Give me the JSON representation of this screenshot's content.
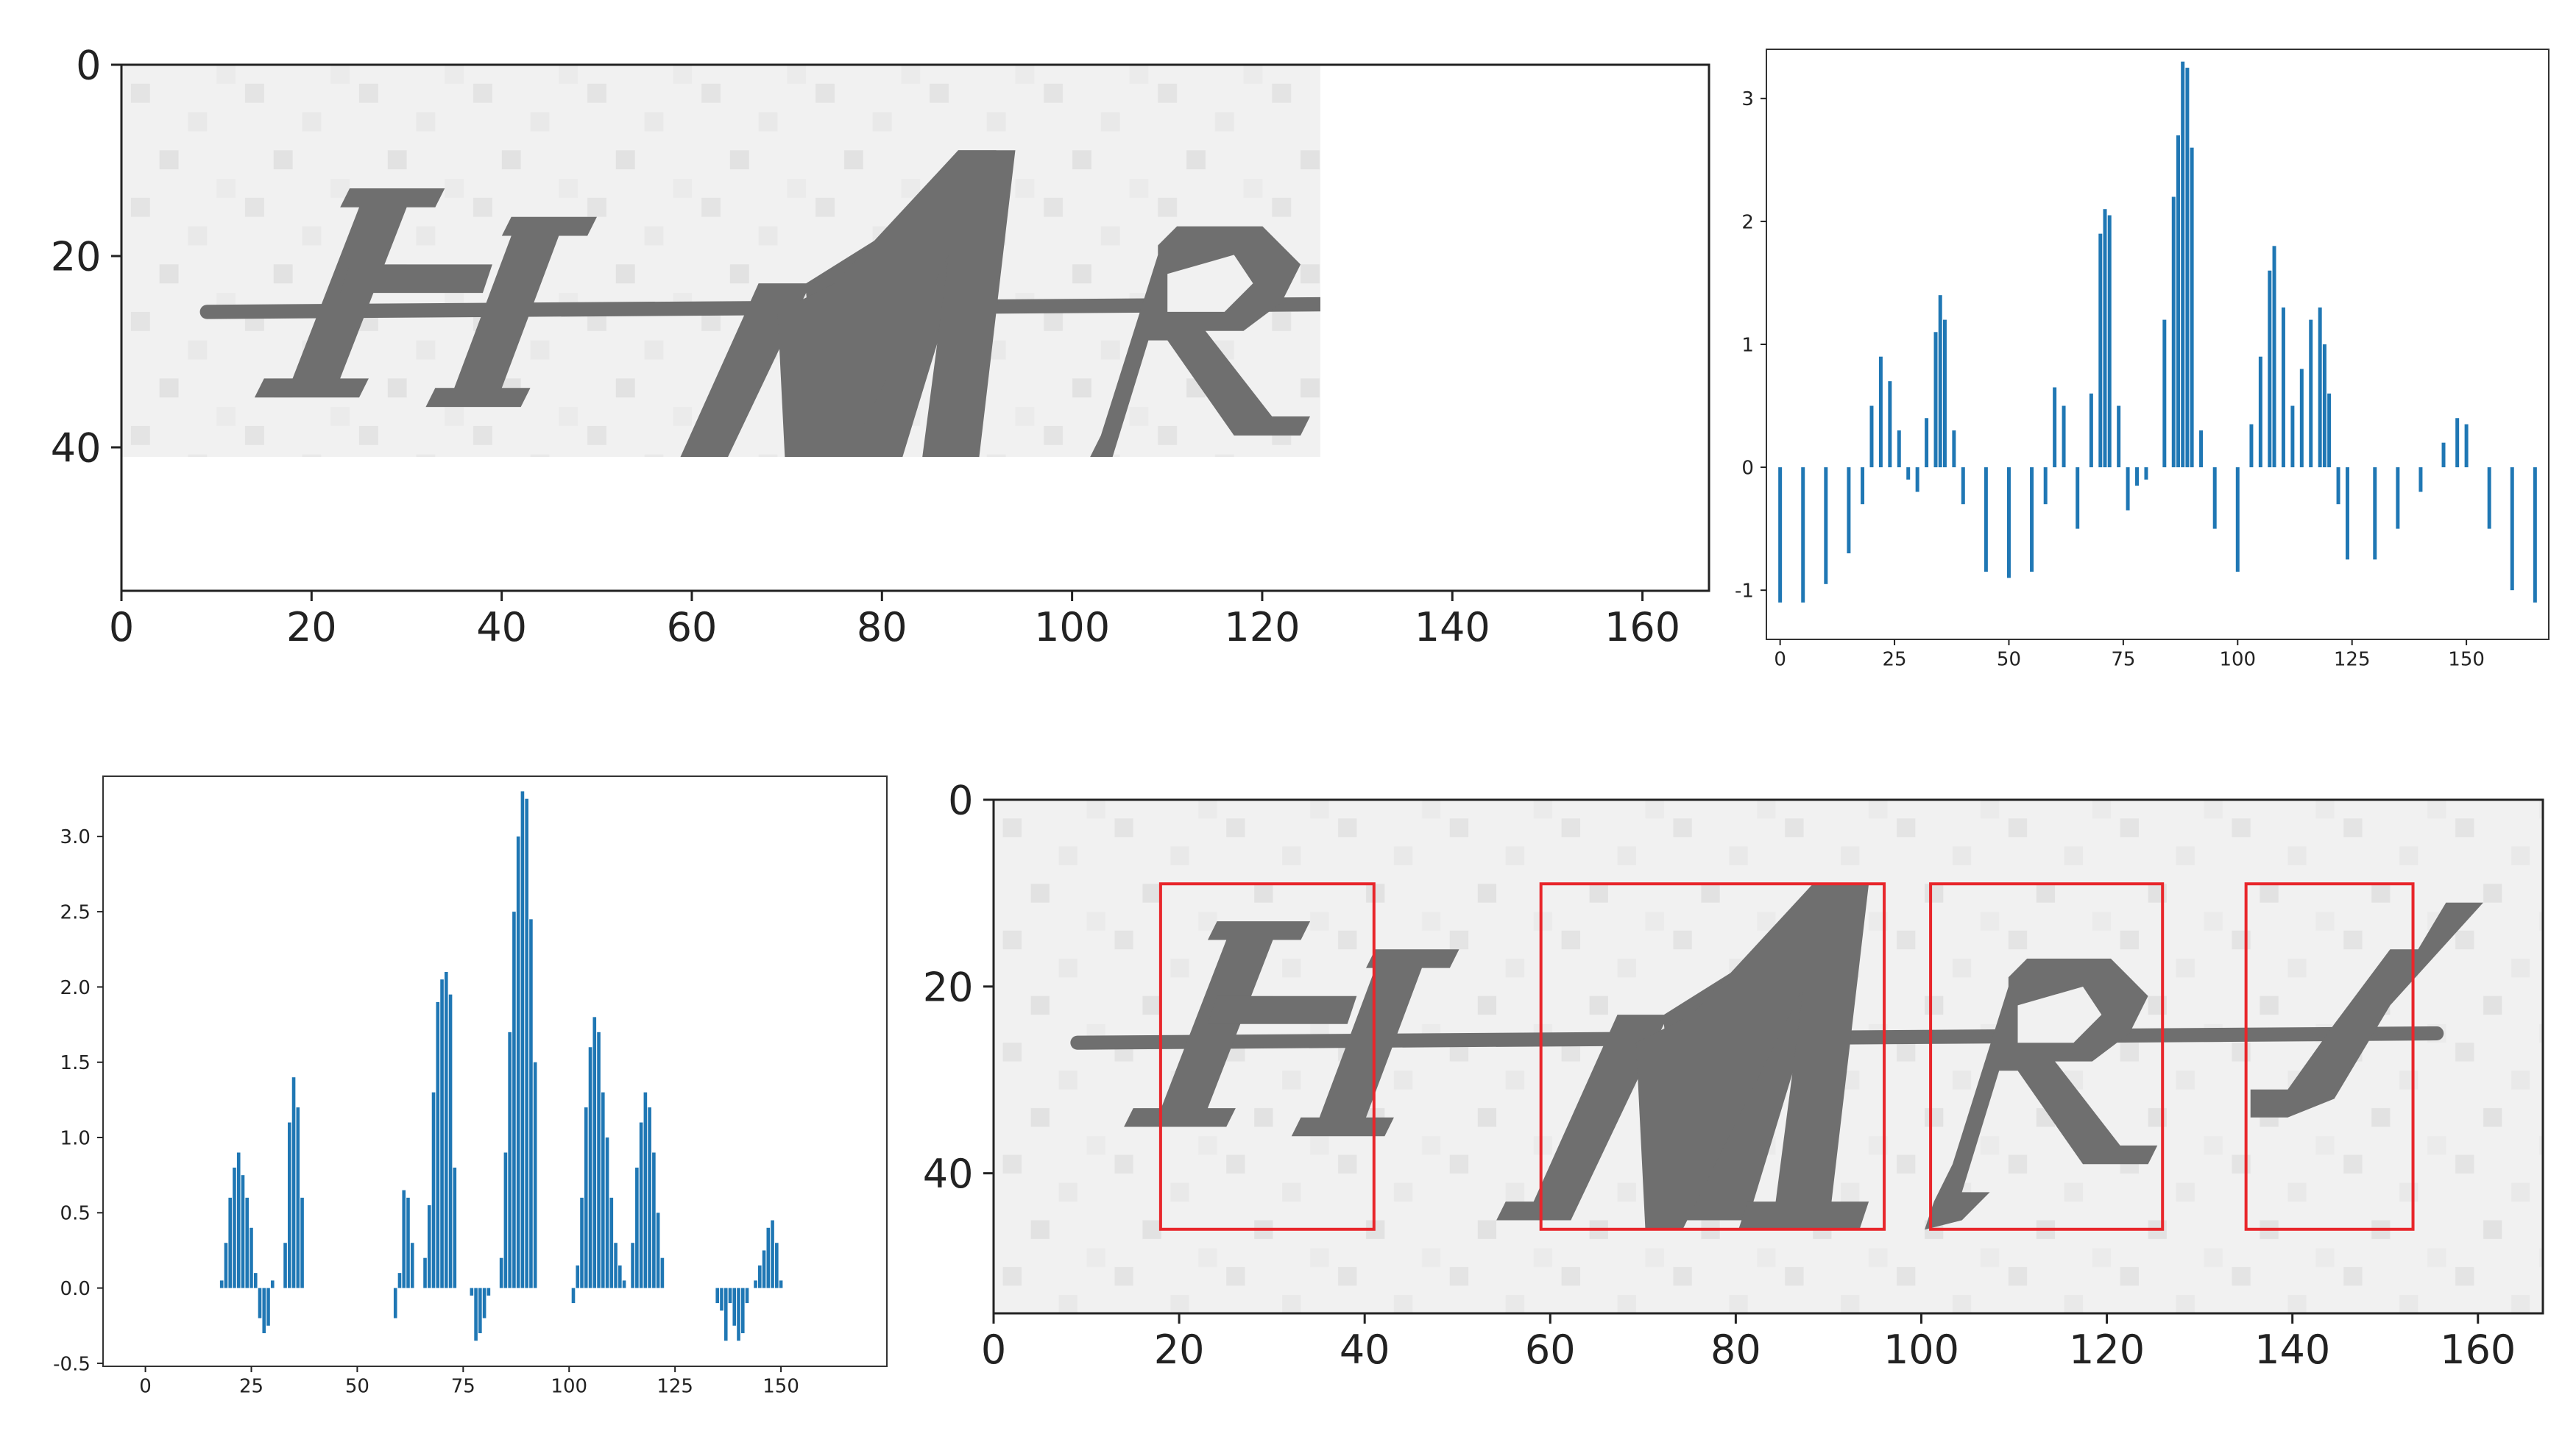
{
  "colors": {
    "bar": "#1f77b4",
    "box": "#e8262b",
    "ink": "#6f6f6f",
    "paper": "#f1f1f1"
  },
  "captcha": {
    "letters": [
      "H",
      "M",
      "R",
      "J"
    ]
  },
  "chart_data": [
    {
      "type": "image",
      "xlim": [
        0,
        167
      ],
      "ylim": [
        55,
        0
      ],
      "xticks": [
        0,
        20,
        40,
        60,
        80,
        100,
        120,
        140,
        160
      ],
      "yticks": [
        0,
        20,
        40
      ],
      "grid": false
    },
    {
      "type": "bar",
      "xlim": [
        -3,
        168
      ],
      "ylim": [
        -1.4,
        3.4
      ],
      "xticks": [
        0,
        25,
        50,
        75,
        100,
        125,
        150
      ],
      "yticks": [
        -1,
        0,
        1,
        2,
        3
      ],
      "grid": false,
      "x": [
        0,
        5,
        10,
        15,
        18,
        20,
        22,
        24,
        26,
        28,
        30,
        32,
        34,
        35,
        36,
        38,
        40,
        45,
        50,
        55,
        58,
        60,
        62,
        65,
        68,
        70,
        71,
        72,
        74,
        76,
        78,
        80,
        84,
        86,
        87,
        88,
        89,
        90,
        92,
        95,
        100,
        103,
        105,
        107,
        108,
        110,
        112,
        114,
        116,
        118,
        119,
        120,
        122,
        124,
        130,
        135,
        140,
        145,
        148,
        150,
        155,
        160,
        165
      ],
      "values": [
        -1.1,
        -1.1,
        -0.95,
        -0.7,
        -0.3,
        0.5,
        0.9,
        0.7,
        0.3,
        -0.1,
        -0.2,
        0.4,
        1.1,
        1.4,
        1.2,
        0.3,
        -0.3,
        -0.85,
        -0.9,
        -0.85,
        -0.3,
        0.65,
        0.5,
        -0.5,
        0.6,
        1.9,
        2.1,
        2.05,
        0.5,
        -0.35,
        -0.15,
        -0.1,
        1.2,
        2.2,
        2.7,
        3.3,
        3.25,
        2.6,
        0.3,
        -0.5,
        -0.85,
        0.35,
        0.9,
        1.6,
        1.8,
        1.3,
        0.5,
        0.8,
        1.2,
        1.3,
        1.0,
        0.6,
        -0.3,
        -0.75,
        -0.75,
        -0.5,
        -0.2,
        0.2,
        0.4,
        0.35,
        -0.5,
        -1.0,
        -1.1
      ]
    },
    {
      "type": "bar",
      "xlim": [
        -10,
        175
      ],
      "ylim": [
        -0.52,
        3.4
      ],
      "xticks": [
        0,
        25,
        50,
        75,
        100,
        125,
        150
      ],
      "yticks": [
        -0.5,
        0.0,
        0.5,
        1.0,
        1.5,
        2.0,
        2.5,
        3.0
      ],
      "ytick_labels": [
        "-0.5",
        "0.0",
        "0.5",
        "1.0",
        "1.5",
        "2.0",
        "2.5",
        "3.0"
      ],
      "grid": false,
      "x": [
        18,
        19,
        20,
        21,
        22,
        23,
        24,
        25,
        26,
        27,
        28,
        29,
        30,
        33,
        34,
        35,
        36,
        37,
        59,
        60,
        61,
        62,
        63,
        66,
        67,
        68,
        69,
        70,
        71,
        72,
        73,
        77,
        78,
        79,
        80,
        81,
        84,
        85,
        86,
        87,
        88,
        89,
        90,
        91,
        92,
        101,
        102,
        103,
        104,
        105,
        106,
        107,
        108,
        109,
        110,
        111,
        112,
        113,
        115,
        116,
        117,
        118,
        119,
        120,
        121,
        122,
        135,
        136,
        137,
        138,
        139,
        140,
        141,
        142,
        144,
        145,
        146,
        147,
        148,
        149,
        150
      ],
      "values": [
        0.05,
        0.3,
        0.6,
        0.8,
        0.9,
        0.75,
        0.6,
        0.4,
        0.1,
        -0.2,
        -0.3,
        -0.25,
        0.05,
        0.3,
        1.1,
        1.4,
        1.2,
        0.6,
        -0.2,
        0.1,
        0.65,
        0.6,
        0.3,
        0.2,
        0.55,
        1.3,
        1.9,
        2.05,
        2.1,
        1.95,
        0.8,
        -0.05,
        -0.35,
        -0.3,
        -0.2,
        -0.05,
        0.2,
        0.9,
        1.7,
        2.5,
        3.0,
        3.3,
        3.25,
        2.45,
        1.5,
        -0.1,
        0.15,
        0.6,
        1.2,
        1.6,
        1.8,
        1.7,
        1.3,
        1.0,
        0.6,
        0.3,
        0.15,
        0.05,
        0.3,
        0.8,
        1.1,
        1.3,
        1.2,
        0.9,
        0.5,
        0.2,
        -0.1,
        -0.15,
        -0.35,
        -0.1,
        -0.25,
        -0.35,
        -0.3,
        -0.1,
        0.05,
        0.15,
        0.25,
        0.4,
        0.45,
        0.3,
        0.05
      ]
    },
    {
      "type": "image",
      "xlim": [
        0,
        167
      ],
      "ylim": [
        55,
        0
      ],
      "xticks": [
        0,
        20,
        40,
        60,
        80,
        100,
        120,
        140,
        160
      ],
      "yticks": [
        0,
        20,
        40
      ],
      "grid": false,
      "segments": [
        {
          "x0": 18,
          "x1": 41,
          "y0": 9,
          "y1": 46
        },
        {
          "x0": 59,
          "x1": 96,
          "y0": 9,
          "y1": 46
        },
        {
          "x0": 101,
          "x1": 126,
          "y0": 9,
          "y1": 46
        },
        {
          "x0": 135,
          "x1": 153,
          "y0": 9,
          "y1": 46
        }
      ]
    }
  ]
}
